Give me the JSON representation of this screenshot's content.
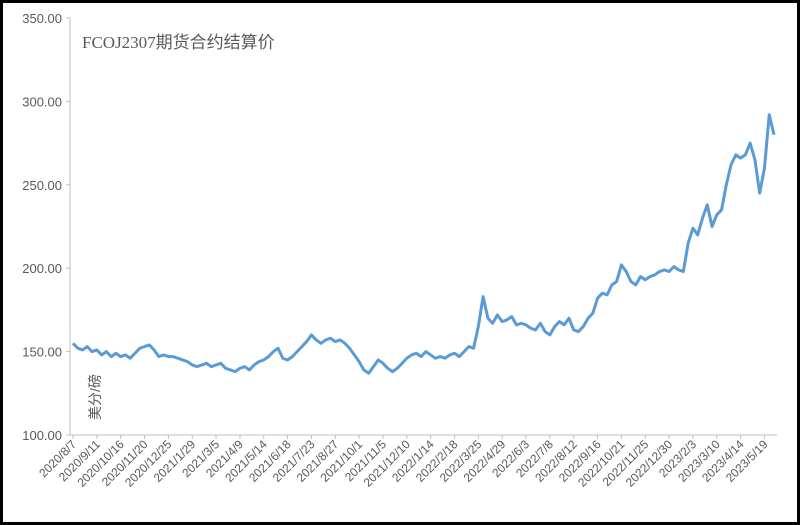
{
  "chart_data": {
    "type": "line",
    "title": "FCOJ2307期货合约结算价",
    "y_label": "美分/磅",
    "color": "#5b9bd5",
    "categories": [
      "2020/8/7",
      null,
      null,
      null,
      null,
      "2020/9/11",
      null,
      null,
      null,
      null,
      "2020/10/16",
      null,
      null,
      null,
      null,
      "2020/11/20",
      null,
      null,
      null,
      null,
      "2020/12/25",
      null,
      null,
      null,
      null,
      "2021/1/29",
      null,
      null,
      null,
      null,
      "2021/3/5",
      null,
      null,
      null,
      null,
      "2021/4/9",
      null,
      null,
      null,
      null,
      "2021/5/14",
      null,
      null,
      null,
      null,
      "2021/6/18",
      null,
      null,
      null,
      null,
      "2021/7/23",
      null,
      null,
      null,
      null,
      "2021/8/27",
      null,
      null,
      null,
      null,
      "2021/10/1",
      null,
      null,
      null,
      null,
      "2021/11/5",
      null,
      null,
      null,
      null,
      "2021/12/10",
      null,
      null,
      null,
      null,
      "2022/1/14",
      null,
      null,
      null,
      null,
      "2022/2/18",
      null,
      null,
      null,
      null,
      "2022/3/25",
      null,
      null,
      null,
      null,
      "2022/4/29",
      null,
      null,
      null,
      null,
      "2022/6/3",
      null,
      null,
      null,
      null,
      "2022/7/8",
      null,
      null,
      null,
      null,
      "2022/8/12",
      null,
      null,
      null,
      null,
      "2022/9/16",
      null,
      null,
      null,
      null,
      "2022/10/21",
      null,
      null,
      null,
      null,
      "2022/11/25",
      null,
      null,
      null,
      null,
      "2022/12/30",
      null,
      null,
      null,
      null,
      "2023/2/3",
      null,
      null,
      null,
      null,
      "2023/3/10",
      null,
      null,
      null,
      null,
      "2023/4/14",
      null,
      null,
      null,
      null,
      "2023/5/19",
      null,
      null
    ],
    "values": [
      155,
      152,
      151,
      153,
      150,
      151,
      148,
      150,
      147,
      149,
      147,
      148,
      146,
      149,
      152,
      153,
      154,
      151,
      147,
      148,
      147,
      147,
      146,
      145,
      144,
      142,
      141,
      142,
      143,
      141,
      142,
      143,
      140,
      139,
      138,
      140,
      141,
      139,
      142,
      144,
      145,
      147,
      150,
      152,
      146,
      145,
      147,
      150,
      153,
      156,
      160,
      157,
      155,
      157,
      158,
      156,
      157,
      155,
      152,
      148,
      144,
      139,
      137,
      141,
      145,
      143,
      140,
      138,
      140,
      143,
      146,
      148,
      149,
      147,
      150,
      148,
      146,
      147,
      146,
      148,
      149,
      147,
      150,
      153,
      152,
      165,
      183,
      170,
      167,
      172,
      168,
      169,
      171,
      166,
      167,
      166,
      164,
      163,
      167,
      162,
      160,
      165,
      168,
      166,
      170,
      163,
      162,
      165,
      170,
      173,
      182,
      185,
      184,
      190,
      192,
      202,
      198,
      192,
      190,
      195,
      193,
      195,
      196,
      198,
      199,
      198,
      201,
      199,
      198,
      215,
      224,
      220,
      230,
      238,
      225,
      232,
      235,
      250,
      262,
      268,
      266,
      268,
      275,
      265,
      245,
      260,
      292,
      280
    ],
    "ylim": [
      100,
      350
    ],
    "yticks": [
      {
        "value": 100,
        "label": "100.00"
      },
      {
        "value": 150,
        "label": "150.00"
      },
      {
        "value": 200,
        "label": "200.00"
      },
      {
        "value": 250,
        "label": "250.00"
      },
      {
        "value": 300,
        "label": "300.00"
      },
      {
        "value": 350,
        "label": "350.00"
      }
    ],
    "grid": false
  }
}
